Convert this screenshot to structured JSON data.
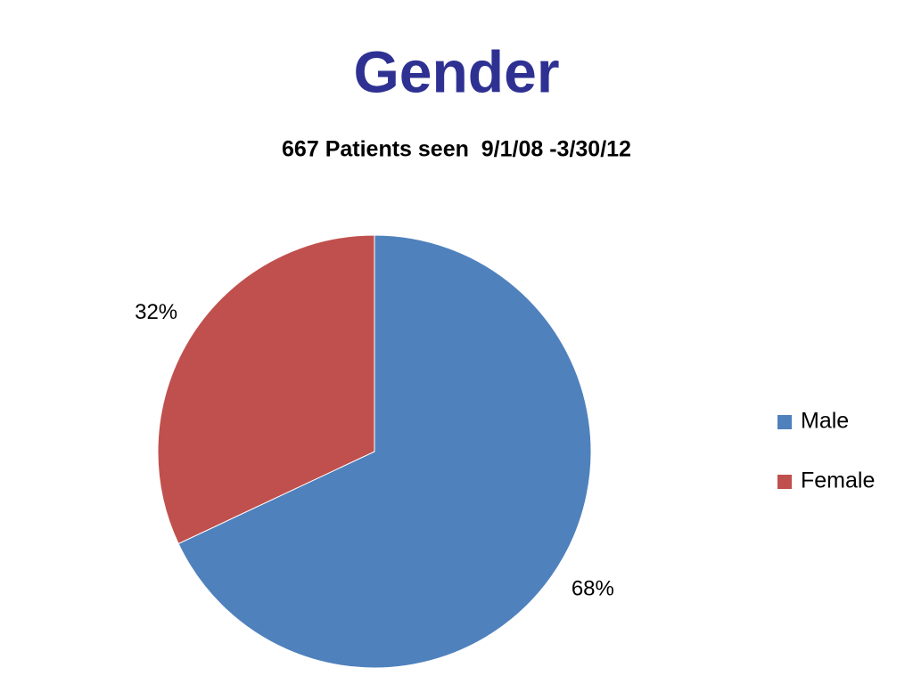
{
  "chart_data": {
    "type": "pie",
    "title": "Gender",
    "subtitle": "667 Patients seen  9/1/08 -3/30/12",
    "categories": [
      "Male",
      "Female"
    ],
    "values": [
      68,
      32
    ],
    "value_labels": [
      "68%",
      "32%"
    ],
    "colors": [
      "#4f81bd",
      "#c0504d"
    ],
    "legend": "right"
  }
}
